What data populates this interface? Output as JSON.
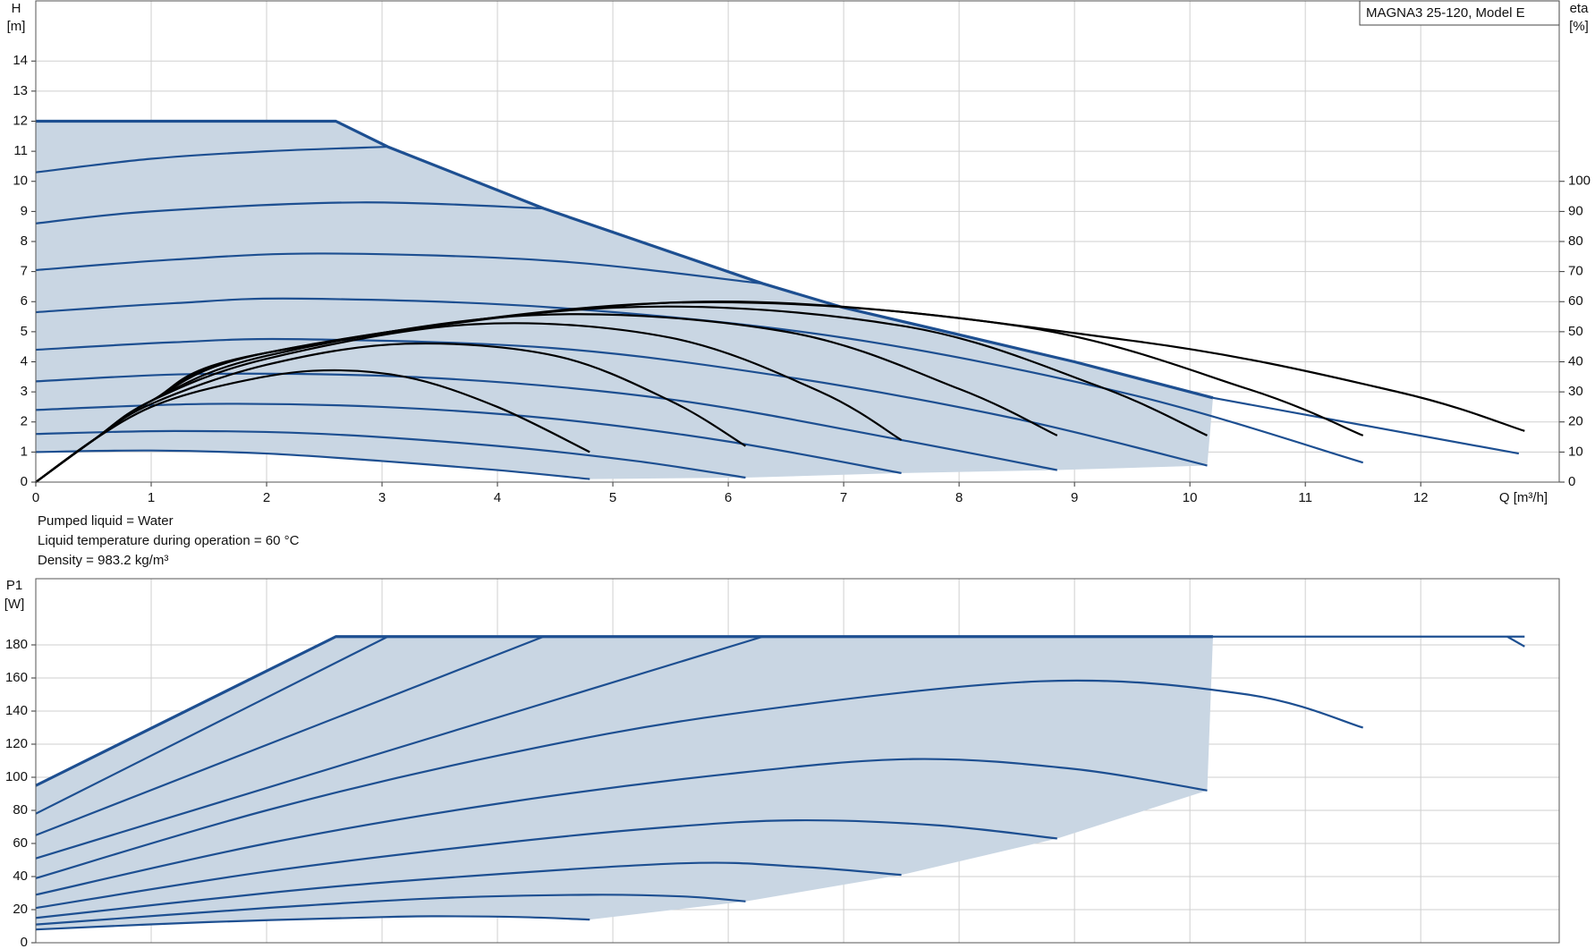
{
  "chart_data": [
    {
      "type": "line",
      "title": "MAGNA3 25-120, Model E",
      "ylabel": "H",
      "yunit": "[m]",
      "y2label": "eta",
      "y2unit": "[%]",
      "xlabel": "Q [m³/h]",
      "xlim": [
        0,
        13.2
      ],
      "xticks": [
        0,
        1,
        2,
        3,
        4,
        5,
        6,
        7,
        8,
        9,
        10,
        11,
        12
      ],
      "ylim": [
        0,
        16
      ],
      "yticks": [
        0,
        1,
        2,
        3,
        4,
        5,
        6,
        7,
        8,
        9,
        10,
        11,
        12,
        13,
        14
      ],
      "y2lim": [
        0,
        160
      ],
      "y2ticks": [
        0,
        10,
        20,
        30,
        40,
        50,
        60,
        70,
        80,
        90,
        100
      ],
      "grid": true,
      "fill_color": "#c9d6e3",
      "notes": [
        "Pumped liquid = Water",
        "Liquid temperature during operation = 60 °C",
        "Density = 983.2 kg/m³"
      ],
      "series": [
        {
          "color": "#1d4f91",
          "x": [
            0,
            2.6,
            3.05,
            4.4,
            6.3,
            7,
            9,
            10.2
          ],
          "values": [
            12,
            12,
            11.15,
            9.1,
            6.6,
            5.8,
            4.0,
            2.8
          ]
        },
        {
          "color": "#1d4f91",
          "x": [
            10.2,
            12.85
          ],
          "values": [
            2.8,
            0.95
          ]
        },
        {
          "color": "#1d4f91",
          "x": [
            0,
            1,
            2,
            3.05
          ],
          "values": [
            10.3,
            10.75,
            11.0,
            11.15
          ]
        },
        {
          "color": "#1d4f91",
          "x": [
            0,
            1,
            2.8,
            4.4
          ],
          "values": [
            8.6,
            9.0,
            9.3,
            9.1
          ]
        },
        {
          "color": "#1d4f91",
          "x": [
            0,
            1.2,
            2.5,
            4.5,
            6.3
          ],
          "values": [
            7.05,
            7.4,
            7.6,
            7.35,
            6.6
          ]
        },
        {
          "color": "#1d4f91",
          "x": [
            0,
            1.2,
            2.3,
            4.5,
            7,
            9.5,
            11.5
          ],
          "values": [
            5.65,
            5.95,
            6.1,
            5.8,
            4.8,
            2.9,
            0.65
          ]
        },
        {
          "color": "#1d4f91",
          "x": [
            0,
            1.2,
            2.3,
            4.5,
            6.5,
            8.5,
            10.15
          ],
          "values": [
            4.4,
            4.65,
            4.75,
            4.45,
            3.5,
            2.1,
            0.55
          ]
        },
        {
          "color": "#1d4f91",
          "x": [
            0,
            1.5,
            3.5,
            5.5,
            7.5,
            8.85
          ],
          "values": [
            3.35,
            3.6,
            3.45,
            2.75,
            1.4,
            0.4
          ]
        },
        {
          "color": "#1d4f91",
          "x": [
            0,
            1.5,
            3,
            4.5,
            6,
            7.5
          ],
          "values": [
            2.4,
            2.6,
            2.5,
            2.1,
            1.35,
            0.3
          ]
        },
        {
          "color": "#1d4f91",
          "x": [
            0,
            1.2,
            2.5,
            4,
            5.2,
            6.15
          ],
          "values": [
            1.6,
            1.7,
            1.6,
            1.2,
            0.7,
            0.15
          ]
        },
        {
          "color": "#1d4f91",
          "x": [
            0,
            1,
            2,
            3,
            4,
            4.8
          ],
          "values": [
            1.0,
            1.05,
            0.95,
            0.7,
            0.4,
            0.1
          ]
        },
        {
          "color": "#000000",
          "axis": "y2",
          "x": [
            0,
            0.5,
            1,
            1.6,
            2.4,
            3.2,
            4.0,
            4.8
          ],
          "values": [
            0,
            14,
            25,
            32,
            37,
            35,
            25,
            10
          ]
        },
        {
          "color": "#000000",
          "axis": "y2",
          "x": [
            0,
            0.5,
            1,
            2,
            3.2,
            4.5,
            5.5,
            6.15
          ],
          "values": [
            0,
            14,
            26,
            39,
            46,
            42,
            27,
            12
          ]
        },
        {
          "color": "#000000",
          "axis": "y2",
          "x": [
            0,
            0.5,
            1,
            2,
            3.8,
            5.5,
            6.8,
            7.5
          ],
          "values": [
            0,
            14,
            27,
            41,
            52.5,
            48,
            30,
            14
          ]
        },
        {
          "color": "#000000",
          "axis": "y2",
          "x": [
            0,
            0.5,
            1,
            2,
            4.3,
            6.5,
            8,
            8.85
          ],
          "values": [
            0,
            14,
            27,
            42,
            55.5,
            50,
            31,
            15.5
          ]
        },
        {
          "color": "#000000",
          "axis": "y2",
          "x": [
            0,
            0.5,
            1,
            2,
            5,
            7.5,
            9.2,
            10.15
          ],
          "values": [
            0,
            14,
            27,
            43,
            58,
            52,
            32,
            15.5
          ]
        },
        {
          "color": "#000000",
          "axis": "y2",
          "x": [
            0,
            0.5,
            1,
            2,
            5.4,
            8.5,
            10.5,
            11.5
          ],
          "values": [
            0,
            14,
            27,
            43,
            59.5,
            52,
            31,
            15.5
          ]
        },
        {
          "color": "#000000",
          "axis": "y2",
          "x": [
            0,
            0.5,
            1,
            2,
            5.8,
            9.5,
            11.8,
            12.9
          ],
          "values": [
            0,
            14,
            27,
            43,
            60,
            47,
            30,
            17
          ]
        }
      ]
    },
    {
      "type": "line",
      "ylabel": "P1",
      "yunit": "[W]",
      "xlim": [
        0,
        13.2
      ],
      "ylim": [
        0,
        220
      ],
      "yticks": [
        0,
        20,
        40,
        60,
        80,
        100,
        120,
        140,
        160,
        180
      ],
      "grid": true,
      "fill_color": "#c9d6e3",
      "series": [
        {
          "color": "#1d4f91",
          "x": [
            0,
            2.6,
            10.2
          ],
          "values": [
            95,
            185,
            185
          ]
        },
        {
          "color": "#1d4f91",
          "x": [
            10.2,
            12.9
          ],
          "values": [
            185,
            185
          ]
        },
        {
          "color": "#1d4f91",
          "x": [
            12.75,
            12.9
          ],
          "values": [
            185,
            179
          ]
        },
        {
          "color": "#1d4f91",
          "x": [
            0,
            3.05
          ],
          "values": [
            78,
            185
          ]
        },
        {
          "color": "#1d4f91",
          "x": [
            0,
            4.4
          ],
          "values": [
            65,
            185
          ]
        },
        {
          "color": "#1d4f91",
          "x": [
            0,
            6.3
          ],
          "values": [
            51,
            185
          ]
        },
        {
          "color": "#1d4f91",
          "x": [
            0,
            2,
            4,
            6,
            8.7,
            10.5,
            11.5
          ],
          "values": [
            39,
            80,
            113,
            138,
            158,
            150,
            130
          ]
        },
        {
          "color": "#1d4f91",
          "x": [
            0,
            2,
            4,
            6,
            7.6,
            9,
            10.15
          ],
          "values": [
            29,
            60,
            84,
            102,
            111,
            105,
            92
          ]
        },
        {
          "color": "#1d4f91",
          "x": [
            0,
            2,
            4,
            5.5,
            6.6,
            7.8,
            8.85
          ],
          "values": [
            21,
            43,
            60,
            70,
            74,
            71,
            63
          ]
        },
        {
          "color": "#1d4f91",
          "x": [
            0,
            2,
            3.5,
            5.6,
            6.6,
            7.5
          ],
          "values": [
            15,
            30,
            39,
            48,
            46,
            41
          ]
        },
        {
          "color": "#1d4f91",
          "x": [
            0,
            2,
            3.5,
            4.8,
            5.6,
            6.15
          ],
          "values": [
            11,
            21,
            27,
            29,
            28,
            25
          ]
        },
        {
          "color": "#1d4f91",
          "x": [
            0,
            1.5,
            3,
            3.5,
            4.2,
            4.8
          ],
          "values": [
            8,
            12.5,
            15.5,
            16,
            15.5,
            14
          ]
        }
      ]
    }
  ]
}
